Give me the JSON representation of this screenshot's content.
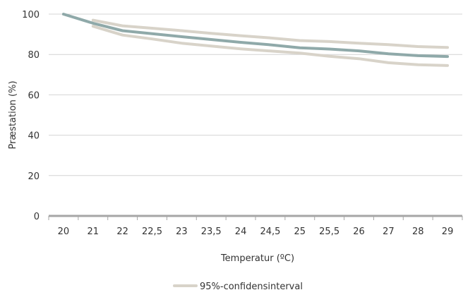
{
  "chart_data": {
    "type": "line",
    "title": "",
    "xlabel": "Temperatur (ºC)",
    "ylabel": "Præstation (%)",
    "categories": [
      "20",
      "21",
      "22",
      "22,5",
      "23",
      "23,5",
      "24",
      "24,5",
      "25",
      "25,5",
      "26",
      "27",
      "28",
      "29"
    ],
    "ylim": [
      0,
      100
    ],
    "yticks": [
      0,
      20,
      40,
      60,
      80,
      100
    ],
    "grid": true,
    "legend_position": "bottom",
    "series": [
      {
        "role": "estimate",
        "color": "#8fa9a9",
        "values": [
          100,
          95.5,
          91.8,
          90.3,
          88.8,
          87.4,
          86.0,
          84.8,
          83.3,
          82.7,
          81.8,
          80.3,
          79.4,
          79.0
        ]
      },
      {
        "role": "upper",
        "name": "95%-confidensinterval",
        "color": "#d8d3c9",
        "values": [
          null,
          97.0,
          94.2,
          93.0,
          91.8,
          90.5,
          89.3,
          88.2,
          86.9,
          86.4,
          85.6,
          84.9,
          83.9,
          83.5
        ]
      },
      {
        "role": "lower",
        "color": "#d8d3c9",
        "values": [
          null,
          94.0,
          89.6,
          87.7,
          85.6,
          84.2,
          82.8,
          81.7,
          80.7,
          79.1,
          77.9,
          75.9,
          74.9,
          74.5
        ]
      }
    ]
  },
  "legend": {
    "label": "95%-confidensinterval",
    "color": "#d8d3c9"
  }
}
